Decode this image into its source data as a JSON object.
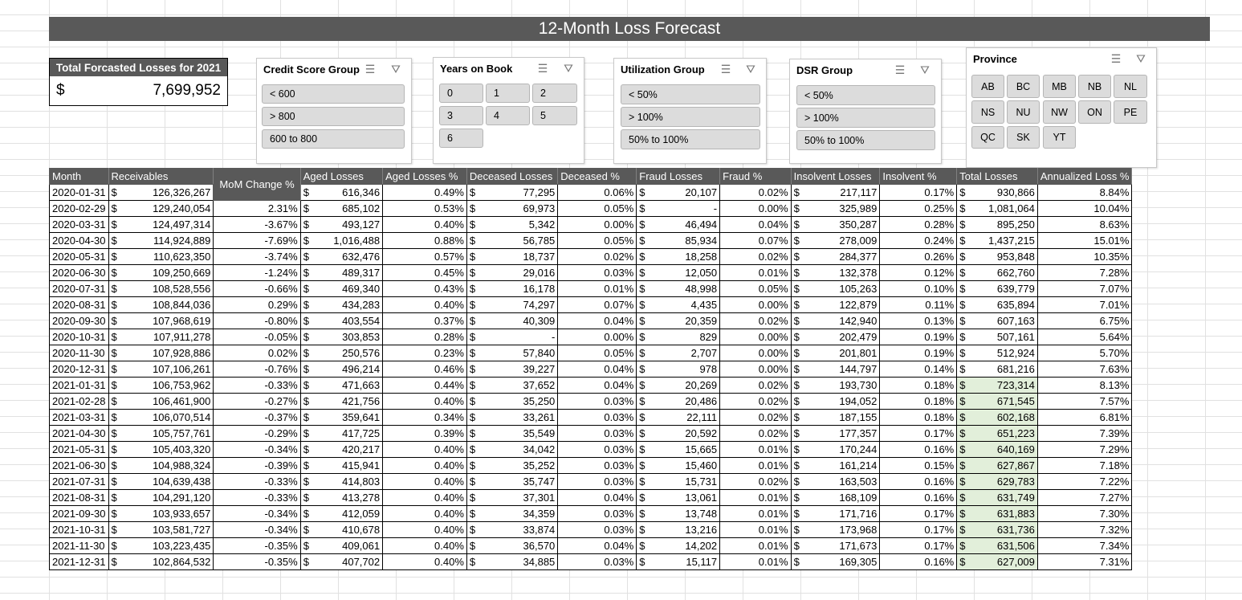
{
  "title": "12-Month Loss Forecast",
  "kpi": {
    "label": "Total Forcasted Losses for 2021",
    "currency": "$",
    "value": "7,699,952"
  },
  "slicers": {
    "credit": {
      "title": "Credit Score Group",
      "items": [
        "< 600",
        "> 800",
        "600 to 800"
      ]
    },
    "years": {
      "title": "Years on Book",
      "items": [
        "0",
        "1",
        "2",
        "3",
        "4",
        "5",
        "6"
      ]
    },
    "util": {
      "title": "Utilization Group",
      "items": [
        "< 50%",
        "> 100%",
        "50% to 100%"
      ]
    },
    "dsr": {
      "title": "DSR Group",
      "items": [
        "< 50%",
        "> 100%",
        "50% to 100%"
      ]
    },
    "province": {
      "title": "Province",
      "items": [
        "AB",
        "BC",
        "MB",
        "NB",
        "NL",
        "NS",
        "NU",
        "NW",
        "ON",
        "PE",
        "QC",
        "SK",
        "YT"
      ]
    }
  },
  "table": {
    "headers": [
      "Month",
      "Receivables",
      "MoM Change %",
      "Aged Losses",
      "Aged Losses %",
      "Deceased Losses",
      "Deceased %",
      "Fraud Losses",
      "Fraud %",
      "Insolvent Losses",
      "Insolvent %",
      "Total Losses",
      "Annualized Loss %"
    ],
    "currency": "$",
    "rows": [
      [
        "2020-01-31",
        "126,326,267",
        "",
        "616,346",
        "0.49%",
        "77,295",
        "0.06%",
        "20,107",
        "0.02%",
        "217,117",
        "0.17%",
        "930,866",
        "8.84%"
      ],
      [
        "2020-02-29",
        "129,240,054",
        "2.31%",
        "685,102",
        "0.53%",
        "69,973",
        "0.05%",
        "-",
        "0.00%",
        "325,989",
        "0.25%",
        "1,081,064",
        "10.04%"
      ],
      [
        "2020-03-31",
        "124,497,314",
        "-3.67%",
        "493,127",
        "0.40%",
        "5,342",
        "0.00%",
        "46,494",
        "0.04%",
        "350,287",
        "0.28%",
        "895,250",
        "8.63%"
      ],
      [
        "2020-04-30",
        "114,924,889",
        "-7.69%",
        "1,016,488",
        "0.88%",
        "56,785",
        "0.05%",
        "85,934",
        "0.07%",
        "278,009",
        "0.24%",
        "1,437,215",
        "15.01%"
      ],
      [
        "2020-05-31",
        "110,623,350",
        "-3.74%",
        "632,476",
        "0.57%",
        "18,737",
        "0.02%",
        "18,258",
        "0.02%",
        "284,377",
        "0.26%",
        "953,848",
        "10.35%"
      ],
      [
        "2020-06-30",
        "109,250,669",
        "-1.24%",
        "489,317",
        "0.45%",
        "29,016",
        "0.03%",
        "12,050",
        "0.01%",
        "132,378",
        "0.12%",
        "662,760",
        "7.28%"
      ],
      [
        "2020-07-31",
        "108,528,556",
        "-0.66%",
        "469,340",
        "0.43%",
        "16,178",
        "0.01%",
        "48,998",
        "0.05%",
        "105,263",
        "0.10%",
        "639,779",
        "7.07%"
      ],
      [
        "2020-08-31",
        "108,844,036",
        "0.29%",
        "434,283",
        "0.40%",
        "74,297",
        "0.07%",
        "4,435",
        "0.00%",
        "122,879",
        "0.11%",
        "635,894",
        "7.01%"
      ],
      [
        "2020-09-30",
        "107,968,619",
        "-0.80%",
        "403,554",
        "0.37%",
        "40,309",
        "0.04%",
        "20,359",
        "0.02%",
        "142,940",
        "0.13%",
        "607,163",
        "6.75%"
      ],
      [
        "2020-10-31",
        "107,911,278",
        "-0.05%",
        "303,853",
        "0.28%",
        "-",
        "0.00%",
        "829",
        "0.00%",
        "202,479",
        "0.19%",
        "507,161",
        "5.64%"
      ],
      [
        "2020-11-30",
        "107,928,886",
        "0.02%",
        "250,576",
        "0.23%",
        "57,840",
        "0.05%",
        "2,707",
        "0.00%",
        "201,801",
        "0.19%",
        "512,924",
        "5.70%"
      ],
      [
        "2020-12-31",
        "107,106,261",
        "-0.76%",
        "496,214",
        "0.46%",
        "39,227",
        "0.04%",
        "978",
        "0.00%",
        "144,797",
        "0.14%",
        "681,216",
        "7.63%"
      ],
      [
        "2021-01-31",
        "106,753,962",
        "-0.33%",
        "471,663",
        "0.44%",
        "37,652",
        "0.04%",
        "20,269",
        "0.02%",
        "193,730",
        "0.18%",
        "723,314",
        "8.13%"
      ],
      [
        "2021-02-28",
        "106,461,900",
        "-0.27%",
        "421,756",
        "0.40%",
        "35,250",
        "0.03%",
        "20,486",
        "0.02%",
        "194,052",
        "0.18%",
        "671,545",
        "7.57%"
      ],
      [
        "2021-03-31",
        "106,070,514",
        "-0.37%",
        "359,641",
        "0.34%",
        "33,261",
        "0.03%",
        "22,111",
        "0.02%",
        "187,155",
        "0.18%",
        "602,168",
        "6.81%"
      ],
      [
        "2021-04-30",
        "105,757,761",
        "-0.29%",
        "417,725",
        "0.39%",
        "35,549",
        "0.03%",
        "20,592",
        "0.02%",
        "177,357",
        "0.17%",
        "651,223",
        "7.39%"
      ],
      [
        "2021-05-31",
        "105,403,320",
        "-0.34%",
        "420,217",
        "0.40%",
        "34,042",
        "0.03%",
        "15,665",
        "0.01%",
        "170,244",
        "0.16%",
        "640,169",
        "7.29%"
      ],
      [
        "2021-06-30",
        "104,988,324",
        "-0.39%",
        "415,941",
        "0.40%",
        "35,252",
        "0.03%",
        "15,460",
        "0.01%",
        "161,214",
        "0.15%",
        "627,867",
        "7.18%"
      ],
      [
        "2021-07-31",
        "104,639,438",
        "-0.33%",
        "414,803",
        "0.40%",
        "35,747",
        "0.03%",
        "15,731",
        "0.02%",
        "163,503",
        "0.16%",
        "629,783",
        "7.22%"
      ],
      [
        "2021-08-31",
        "104,291,120",
        "-0.33%",
        "413,278",
        "0.40%",
        "37,301",
        "0.04%",
        "13,061",
        "0.01%",
        "168,109",
        "0.16%",
        "631,749",
        "7.27%"
      ],
      [
        "2021-09-30",
        "103,933,657",
        "-0.34%",
        "412,059",
        "0.40%",
        "34,359",
        "0.03%",
        "13,748",
        "0.01%",
        "171,716",
        "0.17%",
        "631,883",
        "7.30%"
      ],
      [
        "2021-10-31",
        "103,581,727",
        "-0.34%",
        "410,678",
        "0.40%",
        "33,874",
        "0.03%",
        "13,216",
        "0.01%",
        "173,968",
        "0.17%",
        "631,736",
        "7.32%"
      ],
      [
        "2021-11-30",
        "103,223,435",
        "-0.35%",
        "409,061",
        "0.40%",
        "36,570",
        "0.04%",
        "14,202",
        "0.01%",
        "171,673",
        "0.17%",
        "631,506",
        "7.34%"
      ],
      [
        "2021-12-31",
        "102,864,532",
        "-0.35%",
        "407,702",
        "0.40%",
        "34,885",
        "0.03%",
        "15,117",
        "0.01%",
        "169,305",
        "0.16%",
        "627,009",
        "7.31%"
      ]
    ]
  },
  "colors": {
    "header_bg": "#595959",
    "mom_header_bg": "#404040",
    "forecast_highlight": "#e2efda"
  }
}
